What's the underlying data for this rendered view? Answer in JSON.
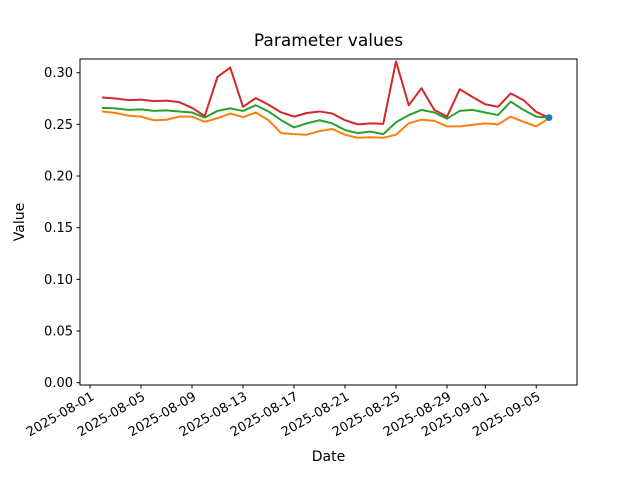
{
  "title": "Parameter values",
  "chart_data": {
    "type": "line",
    "title": "Parameter values",
    "xlabel": "Date",
    "ylabel": "Value",
    "grid": false,
    "legend": "none",
    "ylim": [
      0.0,
      0.3133
    ],
    "yticks": [
      "0.00",
      "0.05",
      "0.10",
      "0.15",
      "0.20",
      "0.25",
      "0.30"
    ],
    "xticks": [
      "2025-08-01",
      "2025-08-05",
      "2025-08-09",
      "2025-08-13",
      "2025-08-17",
      "2025-08-21",
      "2025-08-25",
      "2025-08-29",
      "2025-09-01",
      "2025-09-05"
    ],
    "x_dates": [
      "2025-08-02",
      "2025-08-03",
      "2025-08-04",
      "2025-08-05",
      "2025-08-06",
      "2025-08-07",
      "2025-08-08",
      "2025-08-09",
      "2025-08-10",
      "2025-08-11",
      "2025-08-12",
      "2025-08-13",
      "2025-08-14",
      "2025-08-15",
      "2025-08-16",
      "2025-08-17",
      "2025-08-18",
      "2025-08-19",
      "2025-08-20",
      "2025-08-21",
      "2025-08-22",
      "2025-08-23",
      "2025-08-24",
      "2025-08-25",
      "2025-08-26",
      "2025-08-27",
      "2025-08-28",
      "2025-08-29",
      "2025-08-30",
      "2025-08-31",
      "2025-09-01",
      "2025-09-02",
      "2025-09-03",
      "2025-09-04",
      "2025-09-05",
      "2025-09-06"
    ],
    "series": [
      {
        "name": "red",
        "color": "#d62728",
        "values": [
          0.276,
          0.275,
          0.2735,
          0.274,
          0.2725,
          0.273,
          0.2715,
          0.266,
          0.258,
          0.296,
          0.305,
          0.267,
          0.2755,
          0.269,
          0.2615,
          0.2575,
          0.261,
          0.2625,
          0.2605,
          0.254,
          0.25,
          0.251,
          0.2505,
          0.311,
          0.2685,
          0.285,
          0.264,
          0.2575,
          0.284,
          0.2765,
          0.2695,
          0.267,
          0.28,
          0.2735,
          0.262,
          0.2565
        ]
      },
      {
        "name": "green",
        "color": "#2ca02c",
        "values": [
          0.266,
          0.2655,
          0.264,
          0.2645,
          0.263,
          0.2635,
          0.2625,
          0.2615,
          0.2565,
          0.263,
          0.2655,
          0.263,
          0.2685,
          0.2625,
          0.254,
          0.247,
          0.251,
          0.254,
          0.251,
          0.2445,
          0.2415,
          0.243,
          0.2405,
          0.252,
          0.259,
          0.264,
          0.2615,
          0.2555,
          0.263,
          0.264,
          0.2615,
          0.259,
          0.272,
          0.264,
          0.2575,
          0.2565
        ]
      },
      {
        "name": "orange",
        "color": "#ff7f0e",
        "values": [
          0.2625,
          0.261,
          0.2585,
          0.2575,
          0.254,
          0.2545,
          0.2575,
          0.2575,
          0.2525,
          0.256,
          0.2605,
          0.257,
          0.2615,
          0.254,
          0.2415,
          0.2405,
          0.24,
          0.2435,
          0.2455,
          0.24,
          0.237,
          0.2375,
          0.237,
          0.24,
          0.251,
          0.2545,
          0.2535,
          0.248,
          0.248,
          0.2495,
          0.251,
          0.25,
          0.2575,
          0.2525,
          0.248,
          0.256
        ]
      }
    ],
    "end_marker": {
      "date": "2025-09-06",
      "value": 0.2565,
      "color": "#1f77b4"
    }
  }
}
